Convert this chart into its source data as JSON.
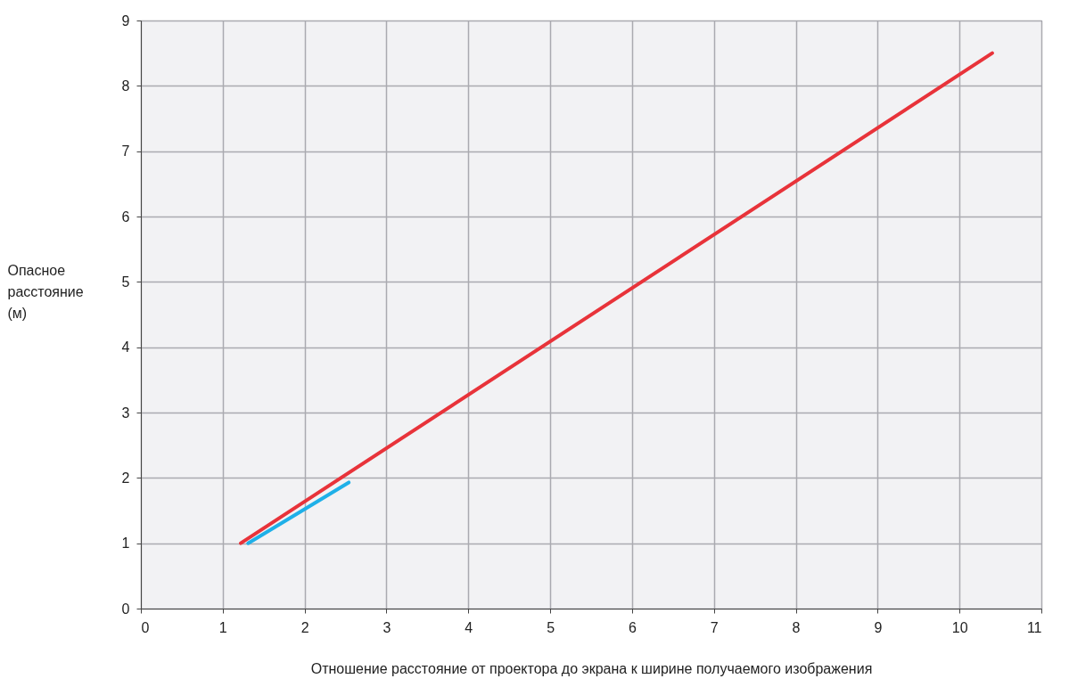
{
  "chart_data": {
    "type": "line",
    "xlabel": "Отношение расстояние от проектора до экрана к ширине получаемого изображения",
    "ylabel": "Опасное расстояние (м)",
    "xlim": [
      0,
      11
    ],
    "ylim": [
      0,
      9
    ],
    "xticks": [
      0,
      1,
      2,
      3,
      4,
      5,
      6,
      7,
      8,
      9,
      10,
      11
    ],
    "yticks": [
      0,
      1,
      2,
      3,
      4,
      5,
      6,
      7,
      8,
      9
    ],
    "grid": true,
    "marker": "none",
    "line_style": "solid",
    "series": [
      {
        "color": "#e8333a",
        "x": [
          1.22,
          10.4
        ],
        "values": [
          1.0,
          8.5
        ]
      },
      {
        "color": "#1fb0e8",
        "x": [
          1.31,
          2.54
        ],
        "values": [
          1.0,
          1.93
        ]
      }
    ]
  }
}
